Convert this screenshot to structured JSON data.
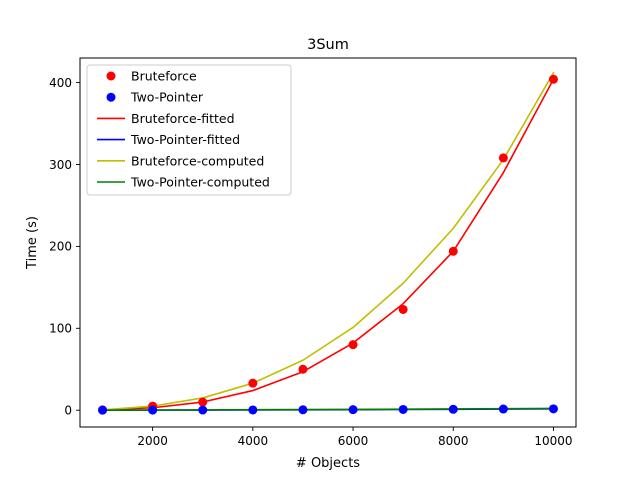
{
  "chart_data": {
    "type": "line",
    "title": "3Sum",
    "xlabel": "# Objects",
    "ylabel": "Time (s)",
    "xlim": [
      550,
      10450
    ],
    "ylim": [
      -20.5,
      430
    ],
    "xticks": [
      2000,
      4000,
      6000,
      8000,
      10000
    ],
    "yticks": [
      0,
      100,
      200,
      300,
      400
    ],
    "grid": false,
    "legend_position": "upper-left",
    "x": [
      1000,
      2000,
      3000,
      4000,
      5000,
      6000,
      7000,
      8000,
      9000,
      10000
    ],
    "series": [
      {
        "name": "Bruteforce",
        "style": "markers",
        "color": "#ff0000",
        "values": [
          0.4,
          5,
          10,
          33,
          50,
          80,
          123,
          194,
          308,
          404
        ]
      },
      {
        "name": "Two-Pointer",
        "style": "markers",
        "color": "#0000ff",
        "values": [
          0.05,
          0.1,
          0.2,
          0.3,
          0.5,
          0.7,
          0.9,
          1.1,
          1.4,
          1.7
        ]
      },
      {
        "name": "Bruteforce-fitted",
        "style": "line",
        "color": "#ff0000",
        "values": [
          0.4,
          3,
          10,
          24,
          47,
          82,
          130,
          194,
          290,
          404
        ]
      },
      {
        "name": "Two-Pointer-fitted",
        "style": "line",
        "color": "#0000ff",
        "values": [
          0.05,
          0.1,
          0.2,
          0.3,
          0.5,
          0.7,
          0.9,
          1.1,
          1.4,
          1.7
        ]
      },
      {
        "name": "Bruteforce-computed",
        "style": "line",
        "color": "#bfbf00",
        "values": [
          0.4,
          5,
          15,
          33,
          61,
          101,
          155,
          222,
          306,
          412
        ]
      },
      {
        "name": "Two-Pointer-computed",
        "style": "line",
        "color": "#008000",
        "values": [
          0.1,
          0.2,
          0.4,
          0.6,
          0.8,
          1.0,
          1.2,
          1.5,
          1.8,
          2.2
        ]
      }
    ]
  }
}
